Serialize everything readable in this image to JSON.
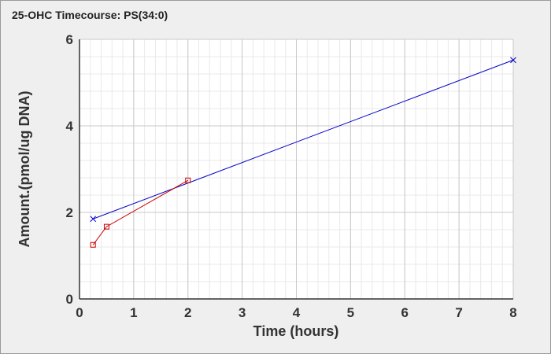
{
  "colors": {
    "background": "#efefef",
    "plot_area": "#ffffff",
    "grid_major": "#c8c8c8",
    "grid_minor": "#e9e9e9",
    "axis": "#333333"
  },
  "chart_data": {
    "type": "line",
    "title": "25-OHC Timecourse: PS(34:0)",
    "xlabel": "Time (hours)",
    "ylabel": "Amount.(pmol/ug DNA)",
    "xlim": [
      0,
      8
    ],
    "ylim": [
      0,
      6
    ],
    "xticks": [
      0,
      1,
      2,
      3,
      4,
      5,
      6,
      7,
      8
    ],
    "yticks": [
      0,
      2,
      4,
      6
    ],
    "grid": true,
    "legend": "none",
    "series": [
      {
        "color": "#0000cc",
        "marker": "x",
        "x": [
          0.25,
          8
        ],
        "y": [
          1.85,
          5.52
        ]
      },
      {
        "color": "#cc0000",
        "marker": "square",
        "x": [
          0.25,
          0.5,
          2
        ],
        "y": [
          1.25,
          1.67,
          2.74
        ]
      }
    ]
  }
}
